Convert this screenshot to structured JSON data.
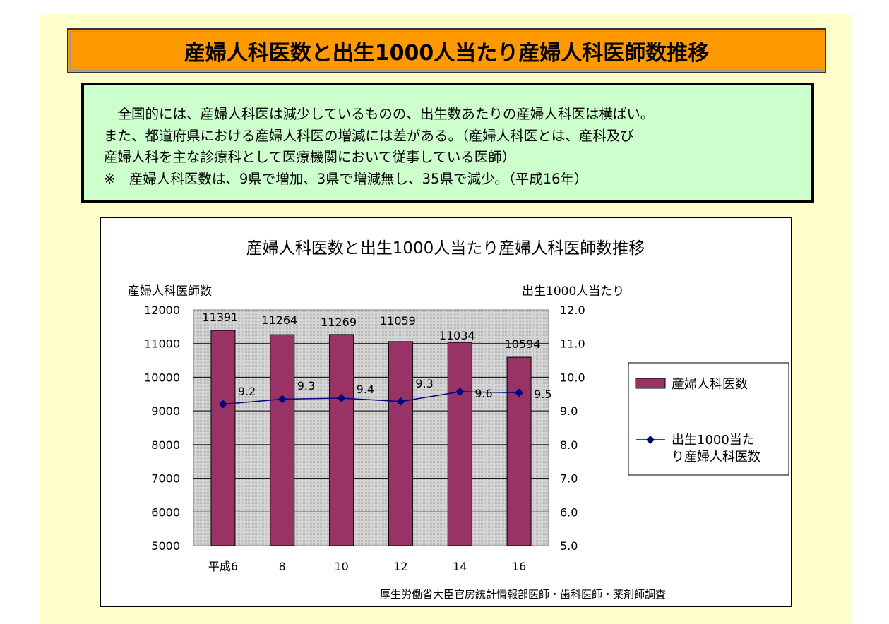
{
  "banner": {
    "title": "産婦人科医数と出生1000人当たり産婦人科医師数推移"
  },
  "note": {
    "lines": [
      "　全国的には、産婦人科医は減少しているものの、出生数あたりの産婦人科医は横ばい。",
      "また、都道府県における産婦人科医の増減には差がある。（産婦人科医とは、産科及び",
      "産婦人科を主な診療科として医療機関において従事している医師）",
      "※　産婦人科医数は、9県で増加、3県で増減無し、35県で減少。（平成16年）"
    ]
  },
  "chart_data": {
    "type": "bar",
    "title": "産婦人科医数と出生1000人当たり産婦人科医師数推移",
    "ylabel": "産婦人科医師数",
    "y2label": "出生1000人当たり",
    "categories": [
      "平成6",
      "8",
      "10",
      "12",
      "14",
      "16"
    ],
    "ylim": [
      5000,
      12000
    ],
    "yticks": [
      "12000",
      "11000",
      "10000",
      "9000",
      "8000",
      "7000",
      "6000",
      "5000"
    ],
    "y2lim": [
      5.0,
      12.0
    ],
    "y2ticks": [
      "12.0",
      "11.0",
      "10.0",
      "9.0",
      "8.0",
      "7.0",
      "6.0",
      "5.0"
    ],
    "series": [
      {
        "name": "産婦人科医数",
        "type": "bar",
        "axis": "left",
        "color": "#993366",
        "values": [
          11391,
          11264,
          11269,
          11059,
          11034,
          10594
        ],
        "labels": [
          "11391",
          "11264",
          "11269",
          "11059",
          "11034",
          "10594"
        ]
      },
      {
        "name": "出生1000当たり産婦人科医数",
        "legend_lines": [
          "出生1000当た",
          "り産婦人科医数"
        ],
        "type": "line",
        "axis": "right",
        "color": "#000080",
        "values": [
          9.2,
          9.35,
          9.38,
          9.28,
          9.57,
          9.54
        ],
        "labels": [
          "9.2",
          "9.3",
          "9.4",
          "9.3",
          "9.6",
          "9.5"
        ]
      }
    ],
    "grid": true,
    "legend": "right",
    "source": "厚生労働省大臣官房統計情報部医師・歯科医師・薬剤師調査"
  }
}
